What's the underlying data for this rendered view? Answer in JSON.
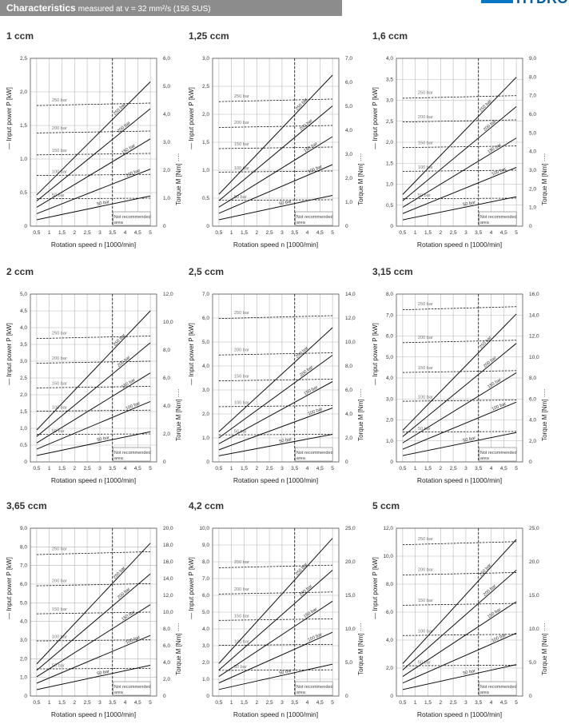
{
  "header": {
    "title_bold": "Characteristics",
    "title_rest": "measured at v = 32 mm²/s (156 SUS)",
    "logo_text": "HYDRO"
  },
  "common": {
    "xlabel": "Rotation speed n [1000/min]",
    "ylabel_left": "Input power P [kW]",
    "ylabel_right": "Torque M [Nm]",
    "x_ticks": [
      "0,5",
      "1",
      "1,5",
      "2",
      "2,5",
      "3",
      "3,5",
      "4",
      "4,5",
      "5"
    ],
    "not_recommended": "Not recommended area",
    "dashed_vertical_at": 3.5,
    "pressures": [
      "50 bar",
      "100 bar",
      "150 bar",
      "200 bar",
      "250 bar"
    ]
  },
  "chart_data": [
    {
      "type": "line",
      "title": "1 ccm",
      "x": [
        0.5,
        5
      ],
      "pmax": 2.5,
      "pticks": [
        "0",
        "0,5",
        "1,0",
        "1,5",
        "2,0",
        "2,5"
      ],
      "pstep": 0.5,
      "mmax": 6,
      "mticks": [
        "0",
        "1,0",
        "2,0",
        "3,0",
        "4,0",
        "5,0",
        "6,0"
      ],
      "mstep": 1,
      "series": [
        {
          "name": "50 bar",
          "power_at_5": 0.45,
          "torque": 1.0
        },
        {
          "name": "100 bar",
          "power_at_5": 0.85,
          "torque": 1.85
        },
        {
          "name": "150 bar",
          "power_at_5": 1.3,
          "torque": 2.6
        },
        {
          "name": "200 bar",
          "power_at_5": 1.75,
          "torque": 3.4
        },
        {
          "name": "250 bar",
          "power_at_5": 2.15,
          "torque": 4.4
        }
      ]
    },
    {
      "type": "line",
      "title": "1,25 ccm",
      "x": [
        0.5,
        5
      ],
      "pmax": 3.0,
      "pticks": [
        "0",
        "0,5",
        "1,0",
        "1,5",
        "2,0",
        "2,5",
        "3,0"
      ],
      "pstep": 0.5,
      "mmax": 7,
      "mticks": [
        "0",
        "1,0",
        "2,0",
        "3,0",
        "4,0",
        "5,0",
        "6,0",
        "7,0"
      ],
      "mstep": 1,
      "series": [
        {
          "name": "50 bar",
          "power_at_5": 0.55,
          "torque": 1.1
        },
        {
          "name": "100 bar",
          "power_at_5": 1.1,
          "torque": 2.3
        },
        {
          "name": "150 bar",
          "power_at_5": 1.6,
          "torque": 3.3
        },
        {
          "name": "200 bar",
          "power_at_5": 2.15,
          "torque": 4.2
        },
        {
          "name": "250 bar",
          "power_at_5": 2.7,
          "torque": 5.3
        }
      ]
    },
    {
      "type": "line",
      "title": "1,6 ccm",
      "x": [
        0.5,
        5
      ],
      "pmax": 4.0,
      "pticks": [
        "0",
        "0,5",
        "1,0",
        "1,5",
        "2,0",
        "2,5",
        "3,0",
        "3,5",
        "4,0"
      ],
      "pstep": 0.5,
      "mmax": 9,
      "mticks": [
        "0",
        "1,0",
        "2,0",
        "3,0",
        "4,0",
        "5,0",
        "6,0",
        "7,0",
        "8,0",
        "9,0"
      ],
      "mstep": 1,
      "series": [
        {
          "name": "50 bar",
          "power_at_5": 0.7,
          "torque": 1.5
        },
        {
          "name": "100 bar",
          "power_at_5": 1.4,
          "torque": 3.0
        },
        {
          "name": "150 bar",
          "power_at_5": 2.1,
          "torque": 4.3
        },
        {
          "name": "200 bar",
          "power_at_5": 2.85,
          "torque": 5.7
        },
        {
          "name": "250 bar",
          "power_at_5": 3.55,
          "torque": 7.0
        }
      ]
    },
    {
      "type": "line",
      "title": "2 ccm",
      "x": [
        0.5,
        5
      ],
      "pmax": 5.0,
      "pticks": [
        "0",
        "0,5",
        "1,0",
        "1,5",
        "2,0",
        "2,5",
        "3,0",
        "3,5",
        "4,0",
        "4,5",
        "5,0"
      ],
      "pstep": 0.5,
      "mmax": 12,
      "mticks": [
        "0",
        "2,0",
        "4,0",
        "6,0",
        "8,0",
        "10,0",
        "12,0"
      ],
      "mstep": 2,
      "series": [
        {
          "name": "50 bar",
          "power_at_5": 0.9,
          "torque": 2.0
        },
        {
          "name": "100 bar",
          "power_at_5": 1.8,
          "torque": 3.7
        },
        {
          "name": "150 bar",
          "power_at_5": 2.65,
          "torque": 5.4
        },
        {
          "name": "200 bar",
          "power_at_5": 3.55,
          "torque": 7.2
        },
        {
          "name": "250 bar",
          "power_at_5": 4.5,
          "torque": 9.0
        }
      ]
    },
    {
      "type": "line",
      "title": "2,5 ccm",
      "x": [
        0.5,
        5
      ],
      "pmax": 7.0,
      "pticks": [
        "0",
        "1,0",
        "2,0",
        "3,0",
        "4,0",
        "5,0",
        "6,0",
        "7,0"
      ],
      "pstep": 1,
      "mmax": 14,
      "mticks": [
        "0",
        "2,0",
        "4,0",
        "6,0",
        "8,0",
        "10,0",
        "12,0",
        "14,0"
      ],
      "mstep": 2,
      "series": [
        {
          "name": "50 bar",
          "power_at_5": 1.15,
          "torque": 2.3
        },
        {
          "name": "100 bar",
          "power_at_5": 2.25,
          "torque": 4.7
        },
        {
          "name": "150 bar",
          "power_at_5": 3.35,
          "torque": 6.9
        },
        {
          "name": "200 bar",
          "power_at_5": 4.45,
          "torque": 9.1
        },
        {
          "name": "250 bar",
          "power_at_5": 5.6,
          "torque": 12.2
        }
      ]
    },
    {
      "type": "line",
      "title": "3,15 ccm",
      "x": [
        0.5,
        5
      ],
      "pmax": 8.0,
      "pticks": [
        "0",
        "1,0",
        "2,0",
        "3,0",
        "4,0",
        "5,0",
        "6,0",
        "7,0",
        "8,0"
      ],
      "pstep": 1,
      "mmax": 16,
      "mticks": [
        "0",
        "2,0",
        "4,0",
        "6,0",
        "8,0",
        "10,0",
        "12,0",
        "14,0",
        "16,0"
      ],
      "mstep": 2,
      "series": [
        {
          "name": "50 bar",
          "power_at_5": 1.4,
          "torque": 2.9
        },
        {
          "name": "100 bar",
          "power_at_5": 2.85,
          "torque": 5.9
        },
        {
          "name": "150 bar",
          "power_at_5": 4.25,
          "torque": 8.7
        },
        {
          "name": "200 bar",
          "power_at_5": 5.65,
          "torque": 11.6
        },
        {
          "name": "250 bar",
          "power_at_5": 7.05,
          "torque": 14.8
        }
      ]
    },
    {
      "type": "line",
      "title": "3,65 ccm",
      "x": [
        0.5,
        5
      ],
      "pmax": 9.0,
      "pticks": [
        "0",
        "1,0",
        "2,0",
        "3,0",
        "4,0",
        "5,0",
        "6,0",
        "7,0",
        "8,0",
        "9,0"
      ],
      "pstep": 1,
      "mmax": 20,
      "mticks": [
        "0",
        "2,0",
        "4,0",
        "6,0",
        "8,0",
        "10,0",
        "12,0",
        "14,0",
        "16,0",
        "18,0",
        "20,0"
      ],
      "mstep": 2,
      "series": [
        {
          "name": "50 bar",
          "power_at_5": 1.65,
          "torque": 3.3
        },
        {
          "name": "100 bar",
          "power_at_5": 3.25,
          "torque": 6.7
        },
        {
          "name": "150 bar",
          "power_at_5": 4.9,
          "torque": 10.0
        },
        {
          "name": "200 bar",
          "power_at_5": 6.55,
          "torque": 13.4
        },
        {
          "name": "250 bar",
          "power_at_5": 8.2,
          "torque": 17.2
        }
      ]
    },
    {
      "type": "line",
      "title": "4,2 ccm",
      "x": [
        0.5,
        5
      ],
      "pmax": 10.0,
      "pticks": [
        "0",
        "1,0",
        "2,0",
        "3,0",
        "4,0",
        "5,0",
        "6,0",
        "7,0",
        "8,0",
        "9,0",
        "10,0"
      ],
      "pstep": 1,
      "mmax": 25,
      "mticks": [
        "0",
        "5,0",
        "10,0",
        "15,0",
        "20,0",
        "25,0"
      ],
      "mstep": 5,
      "series": [
        {
          "name": "50 bar",
          "power_at_5": 1.9,
          "torque": 3.9
        },
        {
          "name": "100 bar",
          "power_at_5": 3.8,
          "torque": 7.7
        },
        {
          "name": "150 bar",
          "power_at_5": 5.65,
          "torque": 11.5
        },
        {
          "name": "200 bar",
          "power_at_5": 7.5,
          "torque": 15.5
        },
        {
          "name": "250 bar",
          "power_at_5": 9.4,
          "torque": 19.5
        }
      ]
    },
    {
      "type": "line",
      "title": "5 ccm",
      "x": [
        0.5,
        5
      ],
      "pmax": 12.0,
      "pticks": [
        "0",
        "2,0",
        "4,0",
        "6,0",
        "8,0",
        "10,0",
        "12,0"
      ],
      "pstep": 2,
      "mmax": 25,
      "mticks": [
        "0",
        "5,0",
        "10,0",
        "15,0",
        "20,0",
        "25,0"
      ],
      "mstep": 5,
      "series": [
        {
          "name": "50 bar",
          "power_at_5": 2.25,
          "torque": 4.6
        },
        {
          "name": "100 bar",
          "power_at_5": 4.5,
          "torque": 9.2
        },
        {
          "name": "150 bar",
          "power_at_5": 6.75,
          "torque": 13.8
        },
        {
          "name": "200 bar",
          "power_at_5": 9.0,
          "torque": 18.4
        },
        {
          "name": "250 bar",
          "power_at_5": 11.2,
          "torque": 23.0
        }
      ]
    }
  ]
}
